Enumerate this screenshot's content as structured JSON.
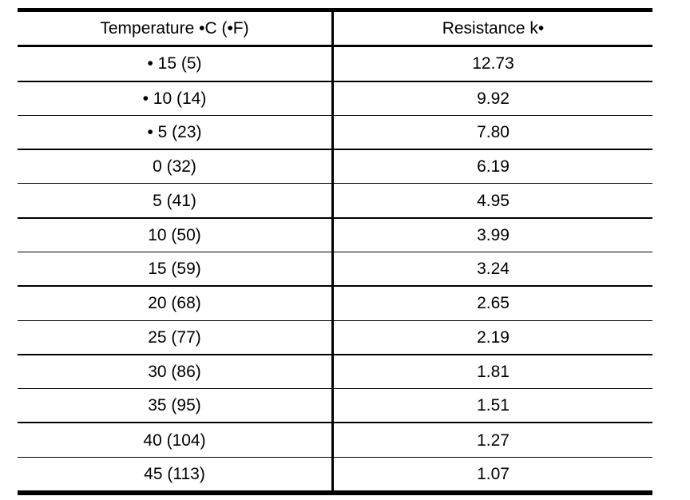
{
  "table": {
    "columns": [
      {
        "label": "Temperature •C (•F)"
      },
      {
        "label": "Resistance k•"
      }
    ],
    "rows": [
      {
        "temperature": "• 15 (5)",
        "resistance": "12.73"
      },
      {
        "temperature": "• 10 (14)",
        "resistance": "9.92"
      },
      {
        "temperature": "• 5 (23)",
        "resistance": "7.80"
      },
      {
        "temperature": "0 (32)",
        "resistance": "6.19"
      },
      {
        "temperature": "5 (41)",
        "resistance": "4.95"
      },
      {
        "temperature": "10 (50)",
        "resistance": "3.99"
      },
      {
        "temperature": "15 (59)",
        "resistance": "3.24"
      },
      {
        "temperature": "20 (68)",
        "resistance": "2.65"
      },
      {
        "temperature": "25 (77)",
        "resistance": "2.19"
      },
      {
        "temperature": "30 (86)",
        "resistance": "1.81"
      },
      {
        "temperature": "35 (95)",
        "resistance": "1.51"
      },
      {
        "temperature": "40 (104)",
        "resistance": "1.27"
      },
      {
        "temperature": "45 (113)",
        "resistance": "1.07"
      }
    ]
  },
  "chart_data": {
    "type": "table",
    "title": "",
    "columns": [
      "Temperature •C (•F)",
      "Resistance k•"
    ],
    "temperature_c": [
      -15,
      -10,
      -5,
      0,
      5,
      10,
      15,
      20,
      25,
      30,
      35,
      40,
      45
    ],
    "temperature_f": [
      5,
      14,
      23,
      32,
      41,
      50,
      59,
      68,
      77,
      86,
      95,
      104,
      113
    ],
    "resistance_kohm": [
      12.73,
      9.92,
      7.8,
      6.19,
      4.95,
      3.99,
      3.24,
      2.65,
      2.19,
      1.81,
      1.51,
      1.27,
      1.07
    ]
  },
  "colors": {
    "border": "#000000",
    "text": "#000000",
    "background": "#ffffff"
  }
}
